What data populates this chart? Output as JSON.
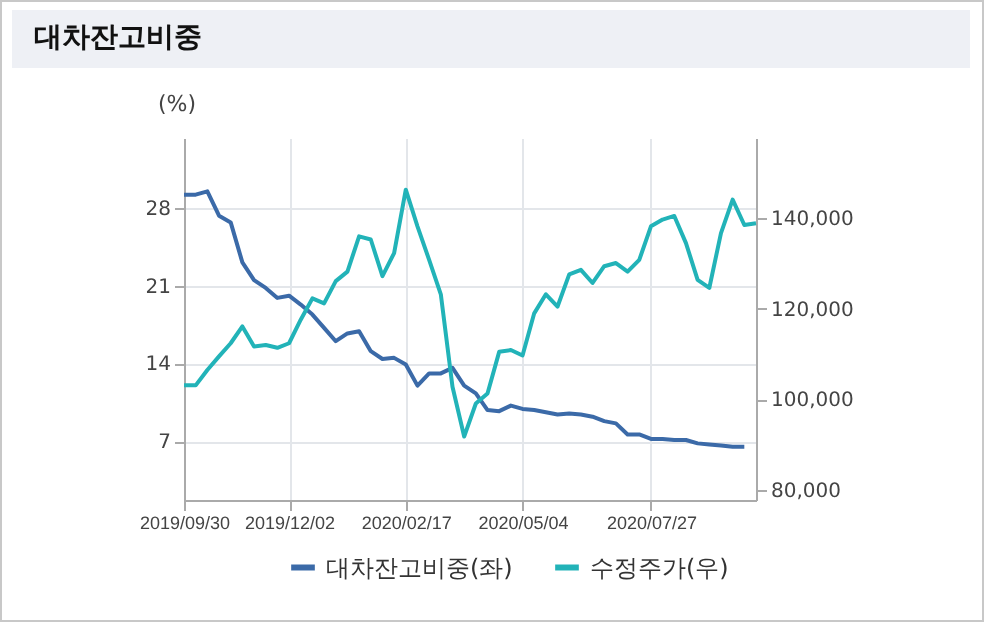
{
  "chart_data": {
    "type": "line",
    "title": "대차잔고비중",
    "ylabel": "(%)",
    "categories": [
      "2019/09/30",
      null,
      null,
      null,
      null,
      null,
      null,
      null,
      null,
      "2019/12/02",
      null,
      null,
      null,
      null,
      null,
      null,
      null,
      null,
      null,
      "2020/02/17",
      null,
      null,
      null,
      null,
      null,
      null,
      null,
      null,
      null,
      "2020/05/04",
      null,
      null,
      null,
      null,
      null,
      null,
      null,
      null,
      null,
      null,
      "2020/07/27",
      null,
      null,
      null,
      null,
      null,
      null,
      null,
      null,
      null
    ],
    "series": [
      {
        "name": "대차잔고비중(좌)",
        "color": "#3b6aa8",
        "values": [
          29.2,
          29.2,
          29.5,
          27.3,
          26.7,
          23.1,
          21.5,
          20.8,
          19.9,
          20.1,
          19.3,
          18.4,
          17.2,
          16.0,
          16.7,
          16.9,
          15.1,
          14.4,
          14.5,
          13.9,
          12.0,
          13.1,
          13.1,
          13.6,
          12.0,
          11.3,
          9.8,
          9.7,
          10.2,
          9.9,
          9.8,
          9.6,
          9.4,
          9.5,
          9.4,
          9.2,
          8.8,
          8.6,
          7.6,
          7.6,
          7.2,
          7.2,
          7.1,
          7.1,
          6.8,
          6.7,
          6.6,
          6.5,
          6.5,
          null
        ]
      },
      {
        "name": "수정주가(우)",
        "color": "#22b3b8",
        "axis": "y2",
        "values": [
          103100,
          103100,
          106500,
          109500,
          112400,
          116100,
          111700,
          112000,
          111400,
          112400,
          117600,
          122300,
          121200,
          126100,
          128200,
          136000,
          135300,
          127200,
          132300,
          146300,
          138200,
          130800,
          123200,
          102800,
          91800,
          99100,
          101300,
          110500,
          110900,
          109700,
          119000,
          123200,
          120500,
          127600,
          128600,
          125700,
          129400,
          130100,
          128200,
          130800,
          138200,
          139700,
          140500,
          134500,
          126400,
          124600,
          136700,
          144100,
          138500,
          138900
        ]
      }
    ],
    "ylim": [
      1.7,
      34.3
    ],
    "yticks": [
      7,
      14,
      21,
      28
    ],
    "y2lim": [
      77800,
      157700
    ],
    "y2ticks": [
      {
        "value": 80000,
        "label": "80,000"
      },
      {
        "value": 100000,
        "label": "100,000"
      },
      {
        "value": 120000,
        "label": "120,000"
      },
      {
        "value": 140000,
        "label": "140,000"
      }
    ],
    "grid": true,
    "legend": "bottom",
    "line_style": "solid",
    "marker": "none"
  }
}
